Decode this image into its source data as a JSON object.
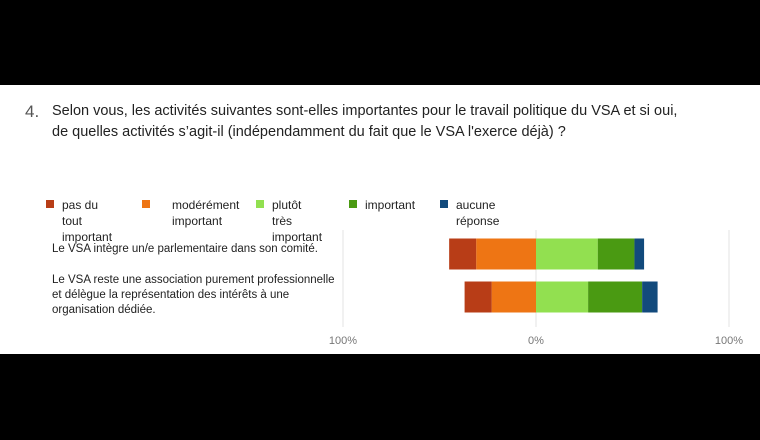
{
  "question": {
    "number": "4.",
    "text_line1": "Selon vous, les activités suivantes sont-elles importantes pour le travail politique du VSA et si oui,",
    "text_line2": "de quelles activités s’agit-il (indépendamment du fait que le VSA l'exerce déjà) ?"
  },
  "legend": [
    {
      "label": "pas du tout\nimportant",
      "color": "#b83d17"
    },
    {
      "label": "modérément\nimportant",
      "color": "#ee7514"
    },
    {
      "label": "plutôt très\nimportant",
      "color": "#92e050"
    },
    {
      "label": "important",
      "color": "#4a9a12"
    },
    {
      "label": "aucune réponse",
      "color": "#124a7c"
    }
  ],
  "chart_data": {
    "type": "bar",
    "orientation": "horizontal",
    "stacked": "diverging",
    "xlim": [
      -100,
      100
    ],
    "x_tick_labels": [
      "100%",
      "0%",
      "100%"
    ],
    "categories": [
      "Le VSA intègre un/e parlementaire dans son comité.",
      "Le VSA reste une association purement professionnelle\net délègue la représentation des intérêts à une\norganisation dédiée."
    ],
    "series": [
      {
        "name": "pas du tout important",
        "values": [
          -14,
          -14
        ]
      },
      {
        "name": "modérément important",
        "values": [
          -31,
          -23
        ]
      },
      {
        "name": "plutôt très important",
        "values": [
          32,
          27
        ]
      },
      {
        "name": "important",
        "values": [
          19,
          28
        ]
      },
      {
        "name": "aucune réponse",
        "values": [
          5,
          8
        ]
      }
    ],
    "grid": true,
    "legend_position": "top"
  }
}
